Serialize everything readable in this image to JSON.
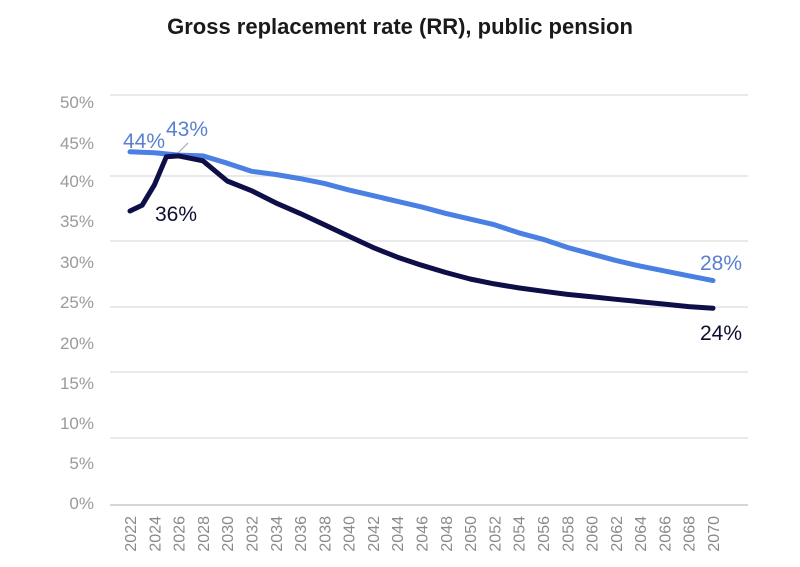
{
  "chart_data": {
    "type": "line",
    "title": "Gross replacement rate (RR), public pension",
    "xlabel": "",
    "ylabel": "",
    "ylim": [
      0,
      50
    ],
    "xlim": [
      2022,
      2070
    ],
    "grid": true,
    "y_ticks": [
      "0%",
      "5%",
      "10%",
      "15%",
      "20%",
      "25%",
      "30%",
      "35%",
      "40%",
      "45%",
      "50%"
    ],
    "x_ticks": [
      "2022",
      "2024",
      "2026",
      "2028",
      "2030",
      "2032",
      "2034",
      "2036",
      "2038",
      "2040",
      "2042",
      "2044",
      "2046",
      "2048",
      "2050",
      "2052",
      "2054",
      "2056",
      "2058",
      "2060",
      "2062",
      "2064",
      "2066",
      "2068",
      "2070"
    ],
    "series": [
      {
        "color": "#4a7fe3",
        "label_color": "#5a7fd0",
        "x": [
          2022,
          2024,
          2026,
          2028,
          2030,
          2032,
          2034,
          2036,
          2038,
          2040,
          2042,
          2044,
          2046,
          2048,
          2050,
          2052,
          2054,
          2056,
          2058,
          2060,
          2062,
          2064,
          2066,
          2068,
          2070
        ],
        "values": [
          43.6,
          43.5,
          43.2,
          43.1,
          42.2,
          41.2,
          40.8,
          40.3,
          39.7,
          38.9,
          38.2,
          37.5,
          36.8,
          36.0,
          35.3,
          34.6,
          33.6,
          32.8,
          31.8,
          31.0,
          30.2,
          29.5,
          28.9,
          28.3,
          27.7
        ],
        "annotations": [
          {
            "text": "44%",
            "year": 2022
          },
          {
            "text": "43%",
            "year": 2026
          },
          {
            "text": "28%",
            "year": 2070
          }
        ]
      },
      {
        "color": "#0e0e48",
        "label_color": "#0e0e30",
        "x": [
          2022,
          2023,
          2024,
          2025,
          2026,
          2028,
          2030,
          2032,
          2034,
          2036,
          2038,
          2040,
          2042,
          2044,
          2046,
          2048,
          2050,
          2052,
          2054,
          2056,
          2058,
          2060,
          2062,
          2064,
          2066,
          2068,
          2070
        ],
        "values": [
          36.3,
          37.0,
          39.5,
          43.0,
          43.1,
          42.5,
          40.0,
          38.8,
          37.3,
          36.0,
          34.6,
          33.2,
          31.8,
          30.6,
          29.6,
          28.7,
          27.9,
          27.3,
          26.8,
          26.4,
          26.0,
          25.7,
          25.4,
          25.1,
          24.8,
          24.5,
          24.3
        ],
        "annotations": [
          {
            "text": "36%",
            "year": 2022
          },
          {
            "text": "24%",
            "year": 2070
          }
        ]
      }
    ]
  }
}
